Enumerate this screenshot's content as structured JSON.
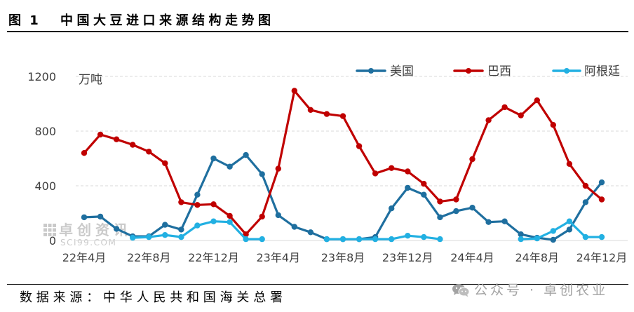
{
  "figure": {
    "label": "图 1"
  },
  "source": "数据来源：中华人民共和国海关总署",
  "watermarks": {
    "chart_brand": "卓创资讯",
    "chart_site": "SCI99.COM",
    "account": "公众号 · 卓创农业"
  },
  "icons": {
    "account": "wechat-icon",
    "chart_brand": "sci99-logo-icon"
  },
  "colors": {
    "axis_text": "#404040",
    "grid": "#D9D9D9",
    "rule": "#000000",
    "watermark": "#9E9E9E"
  },
  "chart_data": {
    "type": "line",
    "title": "中国大豆进口来源结构走势图",
    "y_unit": "万吨",
    "ylim": [
      0,
      1200
    ],
    "y_ticks": [
      0,
      400,
      800,
      1200
    ],
    "grid": true,
    "legend": "top-right",
    "x": [
      "22年4月",
      "22年5月",
      "22年6月",
      "22年7月",
      "22年8月",
      "22年9月",
      "22年10月",
      "22年11月",
      "22年12月",
      "23年1月",
      "23年2月",
      "23年3月",
      "23年4月",
      "23年5月",
      "23年6月",
      "23年7月",
      "23年8月",
      "23年9月",
      "23年10月",
      "23年11月",
      "23年12月",
      "24年1月",
      "24年2月",
      "24年3月",
      "24年4月",
      "24年5月",
      "24年6月",
      "24年7月",
      "24年8月",
      "24年9月",
      "24年10月",
      "24年11月",
      "24年12月"
    ],
    "series": [
      {
        "name": "美国",
        "color": "#1F6F9F",
        "values": [
          170,
          175,
          85,
          30,
          30,
          115,
          80,
          335,
          600,
          540,
          625,
          485,
          185,
          100,
          60,
          10,
          10,
          10,
          25,
          235,
          385,
          335,
          170,
          215,
          240,
          135,
          140,
          45,
          20,
          5,
          80,
          280,
          425
        ]
      },
      {
        "name": "巴西",
        "color": "#C00000",
        "values": [
          640,
          775,
          740,
          700,
          650,
          565,
          280,
          260,
          265,
          180,
          45,
          175,
          525,
          1095,
          955,
          925,
          910,
          690,
          490,
          530,
          505,
          415,
          285,
          300,
          595,
          880,
          975,
          915,
          1025,
          845,
          560,
          400,
          300
        ]
      },
      {
        "name": "阿根廷",
        "color": "#22B0E2",
        "values": [
          null,
          null,
          null,
          20,
          25,
          40,
          25,
          110,
          140,
          135,
          10,
          10,
          null,
          null,
          null,
          10,
          10,
          10,
          10,
          10,
          35,
          25,
          10,
          null,
          null,
          null,
          null,
          10,
          15,
          70,
          140,
          25,
          25
        ]
      }
    ]
  }
}
